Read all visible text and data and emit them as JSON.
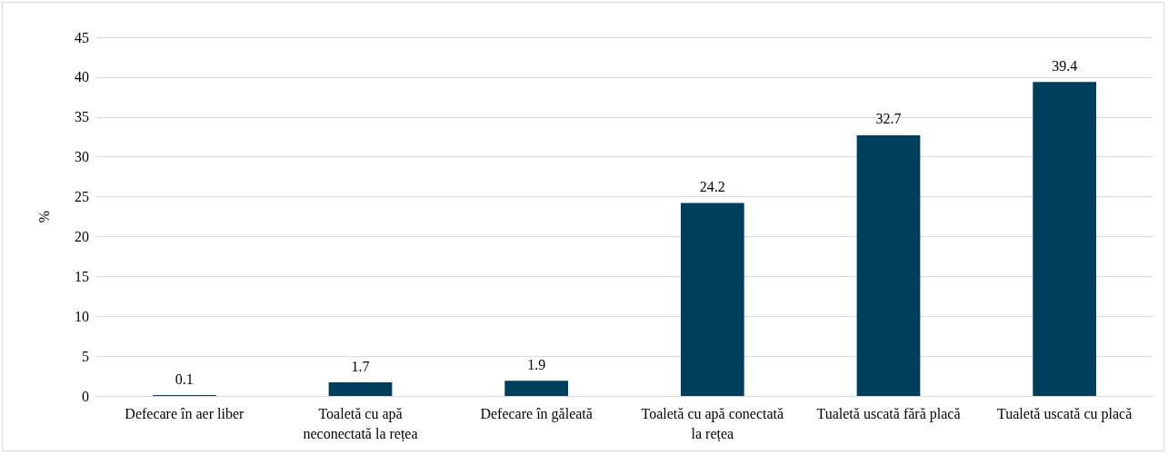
{
  "chart_data": {
    "type": "bar",
    "ylabel": "%",
    "categories": [
      "Defecare în aer liber",
      "Toaletă cu apă neconectată la rețea",
      "Defecare în găleată",
      "Toaletă cu apă conectată la rețea",
      "Tualetă uscată fără placă",
      "Tualetă uscată cu placă"
    ],
    "values": [
      0.1,
      1.7,
      1.9,
      24.2,
      32.7,
      39.4
    ],
    "color": "#003f5c",
    "ylim": [
      0,
      45
    ],
    "yticks": [
      0,
      5,
      10,
      15,
      20,
      25,
      30,
      35,
      40,
      45
    ],
    "grid": "y",
    "data_labels": true
  }
}
